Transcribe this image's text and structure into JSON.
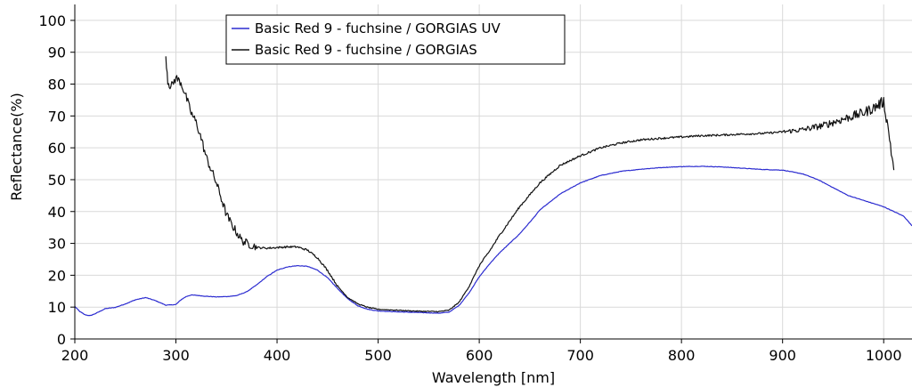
{
  "chart_data": {
    "type": "line",
    "title": "",
    "xlabel": "Wavelength [nm]",
    "ylabel": "Reflectance(%)",
    "xlim": [
      200,
      1028
    ],
    "ylim": [
      0,
      105
    ],
    "xticks": [
      200,
      300,
      400,
      500,
      600,
      700,
      800,
      900,
      1000
    ],
    "yticks": [
      0,
      10,
      20,
      30,
      40,
      50,
      60,
      70,
      80,
      90,
      100
    ],
    "grid": true,
    "legend_position": "top-center",
    "series": [
      {
        "name": "Basic Red 9 - fuchsine / GORGIAS UV",
        "color": "#2b2bd0",
        "noise": 0.15,
        "x": [
          200,
          205,
          210,
          215,
          220,
          225,
          230,
          240,
          250,
          260,
          270,
          280,
          290,
          300,
          305,
          310,
          315,
          320,
          330,
          340,
          350,
          360,
          370,
          380,
          390,
          400,
          410,
          420,
          430,
          440,
          450,
          460,
          470,
          480,
          490,
          500,
          520,
          540,
          560,
          570,
          580,
          590,
          600,
          610,
          620,
          640,
          655,
          660,
          680,
          700,
          720,
          740,
          760,
          780,
          800,
          820,
          840,
          860,
          880,
          900,
          920,
          935,
          950,
          965,
          980,
          1000,
          1020,
          1028
        ],
        "y": [
          10.2,
          8.6,
          7.6,
          7.3,
          7.9,
          8.7,
          9.5,
          9.9,
          11.0,
          12.3,
          13.0,
          12.0,
          10.6,
          10.8,
          12.3,
          13.3,
          13.8,
          13.7,
          13.4,
          13.2,
          13.3,
          13.6,
          14.8,
          17.0,
          19.6,
          21.6,
          22.6,
          23.0,
          22.8,
          21.6,
          19.2,
          15.8,
          12.6,
          10.4,
          9.3,
          8.8,
          8.5,
          8.3,
          8.1,
          8.4,
          10.5,
          14.5,
          19.5,
          23.5,
          27.0,
          33.0,
          38.5,
          40.5,
          45.5,
          49.0,
          51.3,
          52.6,
          53.3,
          53.8,
          54.1,
          54.2,
          54.0,
          53.6,
          53.2,
          53.0,
          51.8,
          50.0,
          47.5,
          45.0,
          43.5,
          41.5,
          38.5,
          35.5
        ]
      },
      {
        "name": "Basic Red 9 - fuchsine / GORGIAS",
        "color": "#111111",
        "noise": 1.2,
        "x": [
          290,
          292,
          295,
          300,
          305,
          310,
          315,
          320,
          325,
          330,
          335,
          340,
          345,
          350,
          355,
          360,
          365,
          370,
          375,
          380,
          390,
          400,
          410,
          420,
          430,
          440,
          450,
          460,
          470,
          480,
          490,
          500,
          520,
          540,
          560,
          570,
          580,
          590,
          600,
          610,
          620,
          640,
          660,
          680,
          700,
          720,
          740,
          760,
          780,
          800,
          820,
          840,
          860,
          880,
          900,
          920,
          940,
          960,
          980,
          990,
          1000,
          1005,
          1010
        ],
        "y": [
          89.0,
          81.0,
          79.0,
          82.0,
          80.5,
          76.0,
          71.0,
          68.0,
          63.0,
          57.0,
          53.0,
          49.0,
          44.0,
          39.0,
          36.0,
          33.5,
          31.0,
          30.0,
          29.5,
          28.7,
          28.5,
          28.7,
          28.9,
          28.9,
          27.9,
          25.5,
          21.5,
          16.5,
          13.0,
          11.0,
          9.9,
          9.3,
          9.0,
          8.7,
          8.6,
          9.0,
          11.5,
          16.5,
          23.0,
          27.5,
          32.5,
          41.5,
          49.0,
          54.5,
          57.5,
          60.0,
          61.5,
          62.5,
          63.0,
          63.4,
          63.8,
          64.0,
          64.3,
          64.5,
          65.0,
          65.7,
          67.0,
          69.0,
          71.0,
          72.5,
          74.5,
          65.0,
          53.0
        ]
      }
    ]
  }
}
